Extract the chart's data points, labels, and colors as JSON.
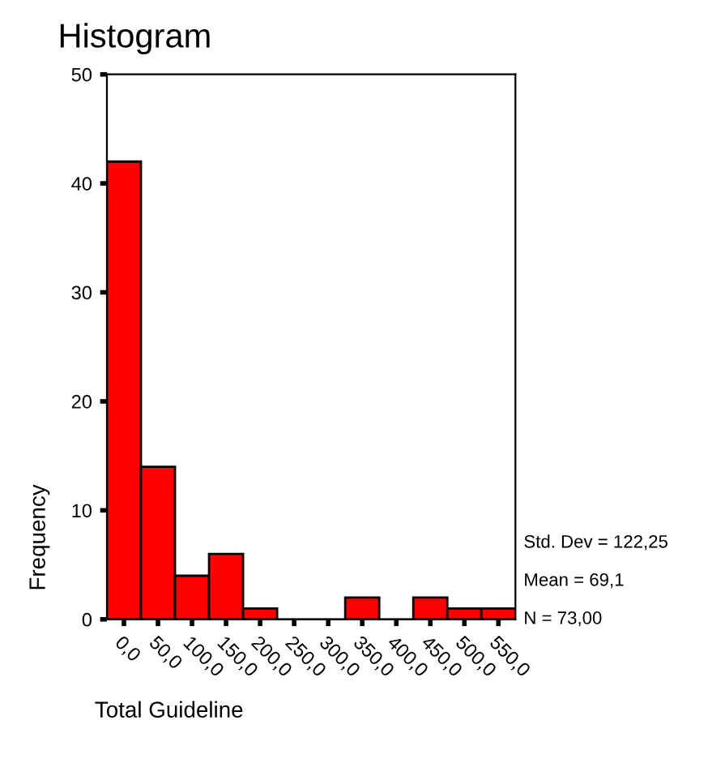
{
  "chart_data": {
    "type": "histogram",
    "title": "Histogram",
    "xlabel": "Total Guideline",
    "ylabel": "Frequency",
    "bins": [
      -25,
      25,
      75,
      125,
      175,
      225,
      275,
      325,
      375,
      425,
      475,
      525,
      575
    ],
    "values": [
      42,
      14,
      4,
      6,
      1,
      0,
      0,
      2,
      0,
      2,
      1,
      1
    ],
    "color": "#ff0000",
    "xlim": [
      -25,
      575
    ],
    "xticks": [
      {
        "value": 0,
        "label": "0,0"
      },
      {
        "value": 50,
        "label": "50,0"
      },
      {
        "value": 100,
        "label": "100,0"
      },
      {
        "value": 150,
        "label": "150,0"
      },
      {
        "value": 200,
        "label": "200,0"
      },
      {
        "value": 250,
        "label": "250,0"
      },
      {
        "value": 300,
        "label": "300,0"
      },
      {
        "value": 350,
        "label": "350,0"
      },
      {
        "value": 400,
        "label": "400,0"
      },
      {
        "value": 450,
        "label": "450,0"
      },
      {
        "value": 500,
        "label": "500,0"
      },
      {
        "value": 550,
        "label": "550,0"
      }
    ],
    "ylim": [
      0,
      50
    ],
    "yticks": [
      0,
      10,
      20,
      30,
      40,
      50
    ],
    "annotations": [
      "Std. Dev = 122,25",
      "Mean = 69,1",
      "N = 73,00"
    ],
    "grid": false,
    "legend": false
  }
}
